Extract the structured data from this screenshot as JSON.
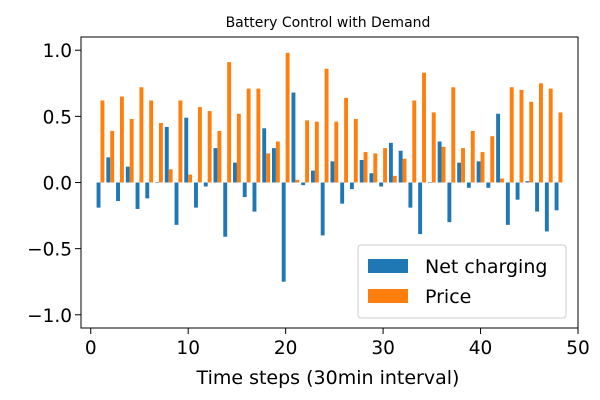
{
  "chart_data": {
    "type": "bar",
    "title": "Battery Control with Demand",
    "xlabel": "Time steps (30min interval)",
    "ylabel": "",
    "xlim": [
      -1,
      50
    ],
    "ylim": [
      -1.1,
      1.1
    ],
    "xticks": [
      0,
      10,
      20,
      30,
      40,
      50
    ],
    "yticks": [
      -1.0,
      -0.5,
      0.0,
      0.5,
      1.0
    ],
    "ytick_labels": [
      "−1.0",
      "−0.5",
      "0.0",
      "0.5",
      "1.0"
    ],
    "grid": false,
    "legend_position": "lower-right",
    "x": [
      1,
      2,
      3,
      4,
      5,
      6,
      7,
      8,
      9,
      10,
      11,
      12,
      13,
      14,
      15,
      16,
      17,
      18,
      19,
      20,
      21,
      22,
      23,
      24,
      25,
      26,
      27,
      28,
      29,
      30,
      31,
      32,
      33,
      34,
      35,
      36,
      37,
      38,
      39,
      40,
      41,
      42,
      43,
      44,
      45,
      46,
      47,
      48
    ],
    "series": [
      {
        "name": "Net charging",
        "color": "#1f77b4",
        "values": [
          -0.19,
          0.19,
          -0.14,
          0.12,
          -0.2,
          -0.12,
          0.0,
          0.42,
          -0.32,
          0.49,
          -0.19,
          -0.03,
          0.26,
          -0.41,
          0.15,
          -0.11,
          -0.22,
          0.41,
          0.26,
          -0.75,
          0.68,
          -0.02,
          0.09,
          -0.4,
          0.16,
          -0.16,
          -0.05,
          0.17,
          0.07,
          -0.03,
          0.3,
          0.24,
          -0.19,
          -0.39,
          0.0,
          0.31,
          -0.3,
          0.15,
          -0.04,
          0.16,
          -0.04,
          0.52,
          -0.32,
          -0.13,
          0.01,
          -0.22,
          -0.37,
          -0.21
        ]
      },
      {
        "name": "Price",
        "color": "#ff7f0e",
        "values": [
          0.62,
          0.39,
          0.65,
          0.48,
          0.72,
          0.62,
          0.45,
          0.1,
          0.62,
          0.06,
          0.57,
          0.54,
          0.39,
          0.91,
          0.52,
          0.71,
          0.71,
          0.22,
          0.31,
          0.98,
          0.02,
          0.47,
          0.46,
          0.86,
          0.46,
          0.64,
          0.48,
          0.23,
          0.22,
          0.26,
          0.05,
          0.18,
          0.62,
          0.83,
          0.53,
          0.27,
          0.72,
          0.26,
          0.39,
          0.23,
          0.35,
          0.03,
          0.72,
          0.7,
          0.61,
          0.75,
          0.71,
          0.53
        ]
      }
    ]
  }
}
